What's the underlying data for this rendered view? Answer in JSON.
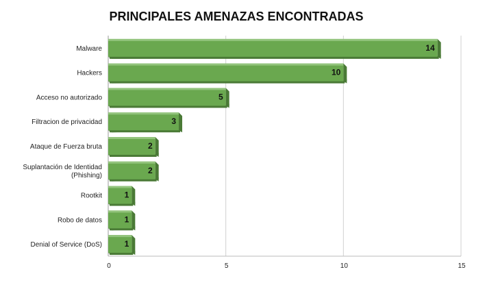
{
  "chart_data": {
    "type": "bar",
    "orientation": "horizontal",
    "title": "PRINCIPALES AMENAZAS ENCONTRADAS",
    "xlabel": "",
    "ylabel": "",
    "categories": [
      "Malware",
      "Hackers",
      "Acceso no autorizado",
      "Filtracion de privacidad",
      "Ataque de Fuerza bruta",
      "Suplantación de Identidad (Phishing)",
      "Rootkit",
      "Robo de datos",
      "Denial of Service (DoS)"
    ],
    "values": [
      14,
      10,
      5,
      3,
      2,
      2,
      1,
      1,
      1
    ],
    "xlim": [
      0,
      15
    ],
    "xticks": [
      0,
      5,
      10,
      15
    ],
    "grid": true,
    "legend": "none",
    "bar_color": "#6aa84f",
    "bar_color_dark": "#4a7a36",
    "bar_color_light": "#93c47d"
  }
}
